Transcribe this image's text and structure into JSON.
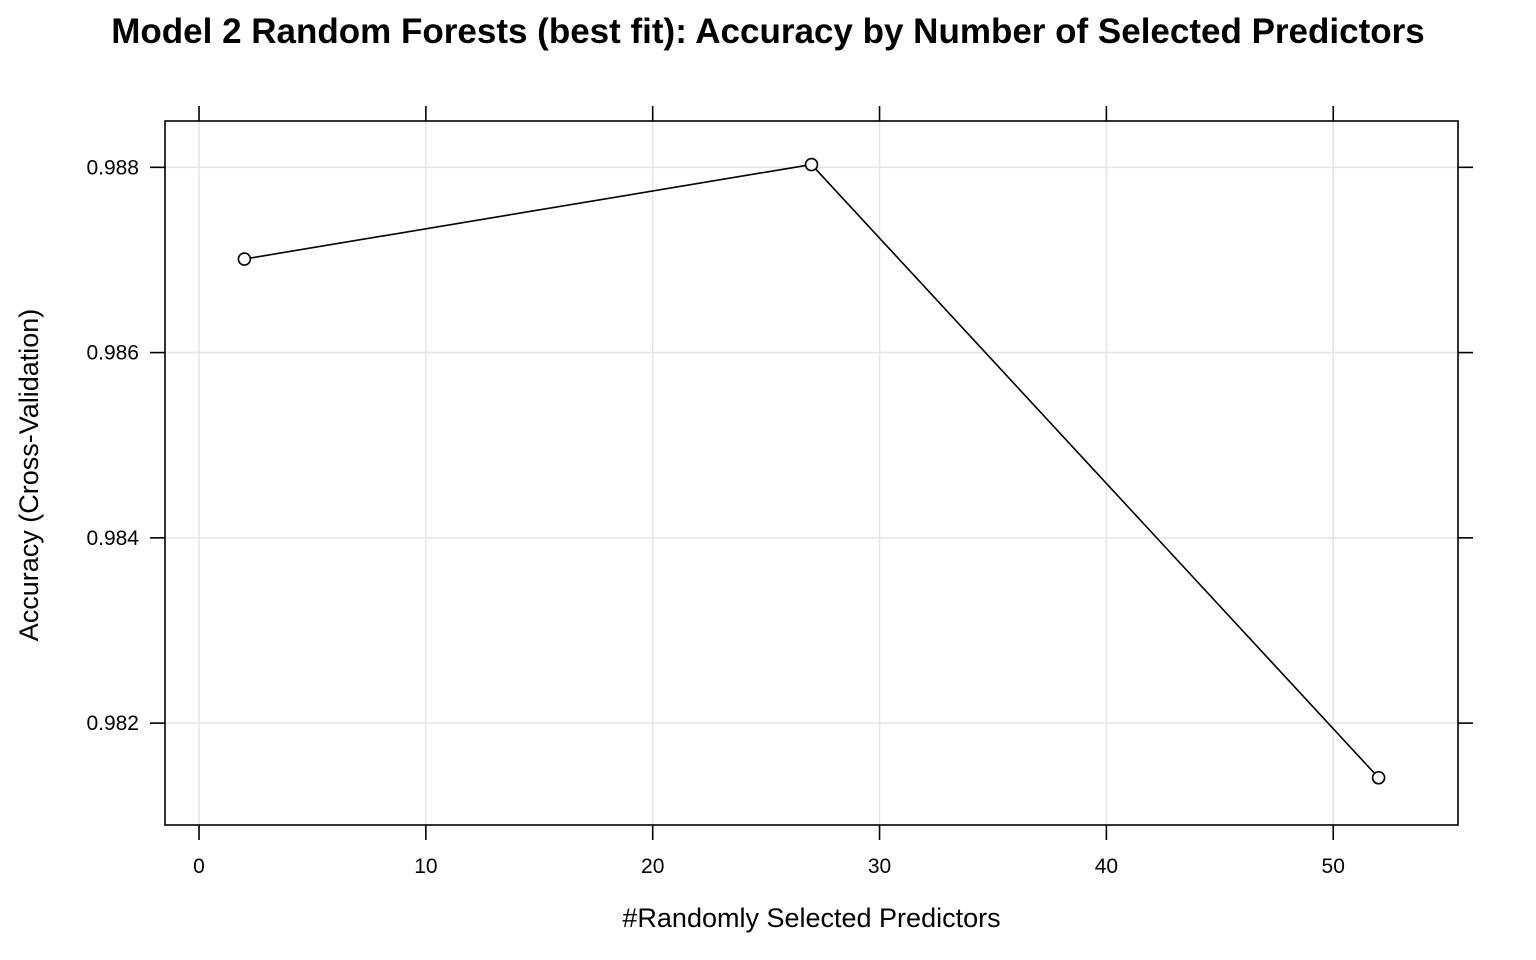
{
  "chart_data": {
    "type": "line",
    "title": "Model 2 Random Forests (best fit): Accuracy by Number of Selected Predictors",
    "xlabel": "#Randomly Selected Predictors",
    "ylabel": "Accuracy (Cross-Validation)",
    "x": [
      2,
      27,
      52
    ],
    "series": [
      {
        "values": [
          0.98701,
          0.98803,
          0.98141
        ]
      }
    ],
    "xlim": [
      -1.5,
      55.5
    ],
    "ylim": [
      0.9809,
      0.9885
    ],
    "xticks": [
      0,
      10,
      20,
      30,
      40,
      50
    ],
    "xtick_labels": [
      "0",
      "10",
      "20",
      "30",
      "40",
      "50"
    ],
    "yticks": [
      0.982,
      0.984,
      0.986,
      0.988
    ],
    "ytick_labels": [
      "0.982",
      "0.984",
      "0.986",
      "0.988"
    ],
    "grid": true,
    "marker": "open-circle",
    "colors": {
      "line": "#000000",
      "grid": "#e6e6e6",
      "axis": "#000000"
    }
  }
}
